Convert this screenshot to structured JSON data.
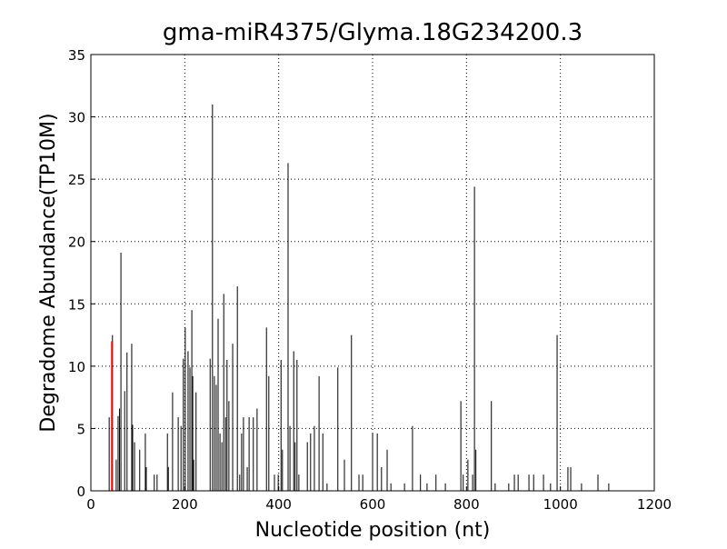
{
  "chart_data": {
    "type": "spike",
    "title": "gma-miR4375/Glyma.18G234200.3",
    "x_label": "Nucleotide position (nt)",
    "y_label": "Degradome Abundance(TP10M)",
    "xlim": [
      0,
      1200
    ],
    "xticks": [
      0,
      200,
      400,
      600,
      800,
      1000,
      1200
    ],
    "ylim": [
      0,
      35
    ],
    "yticks": [
      0,
      5,
      10,
      15,
      20,
      25,
      30,
      35
    ],
    "grid": true,
    "series": [
      {
        "color": "#000000",
        "x": [
          39,
          46,
          54,
          58,
          61,
          64,
          72,
          77,
          87,
          89,
          93,
          104,
          116,
          118,
          135,
          141,
          163,
          165,
          174,
          186,
          192,
          197,
          201,
          207,
          211,
          215,
          217,
          219,
          224,
          254,
          259,
          263,
          267,
          271,
          275,
          279,
          283,
          287,
          290,
          294,
          302,
          312,
          317,
          321,
          325,
          333,
          337,
          346,
          354,
          374,
          379,
          391,
          399,
          405,
          408,
          420,
          424,
          432,
          435,
          439,
          443,
          461,
          468,
          476,
          486,
          494,
          503,
          526,
          540,
          555,
          571,
          579,
          600,
          610,
          619,
          631,
          639,
          668,
          685,
          702,
          716,
          735,
          755,
          788,
          793,
          803,
          813,
          817,
          820,
          853,
          861,
          890,
          902,
          910,
          933,
          943,
          964,
          979,
          993,
          1016,
          1022,
          1045,
          1080,
          1103
        ],
        "values": [
          5.9,
          12.5,
          2.5,
          6,
          6.6,
          19.1,
          8,
          11.1,
          11.8,
          5.3,
          3.9,
          3.3,
          4.6,
          1.9,
          1.3,
          1.3,
          4.6,
          1.9,
          7.9,
          5.9,
          5.2,
          10.6,
          13.1,
          11.2,
          9.9,
          14.5,
          9.2,
          2.5,
          7.9,
          10.6,
          31,
          9.2,
          8.5,
          13.8,
          4.6,
          3.9,
          15.8,
          5.9,
          10.5,
          7.2,
          11.8,
          16.4,
          1.3,
          4.6,
          5.9,
          1.9,
          5.9,
          5.9,
          6.6,
          13.1,
          9.2,
          1.3,
          1.3,
          10.5,
          3.3,
          26.3,
          5.2,
          11.2,
          3.9,
          10.5,
          1.3,
          3.9,
          4.6,
          5.2,
          9.2,
          4.6,
          0.6,
          9.9,
          2.5,
          12.5,
          1.3,
          1.3,
          4.6,
          4.6,
          1.9,
          3.3,
          0.6,
          0.6,
          5.2,
          1.3,
          0.6,
          1.3,
          0.6,
          7.2,
          1.3,
          2.5,
          1.3,
          24.4,
          3.3,
          7.2,
          0.6,
          0.6,
          1.3,
          1.3,
          1.3,
          1.3,
          1.3,
          0.6,
          12.5,
          1.9,
          1.9,
          0.6,
          1.3,
          0.6
        ]
      },
      {
        "color": "#ff0000",
        "x": [
          45
        ],
        "values": [
          12
        ]
      }
    ]
  }
}
